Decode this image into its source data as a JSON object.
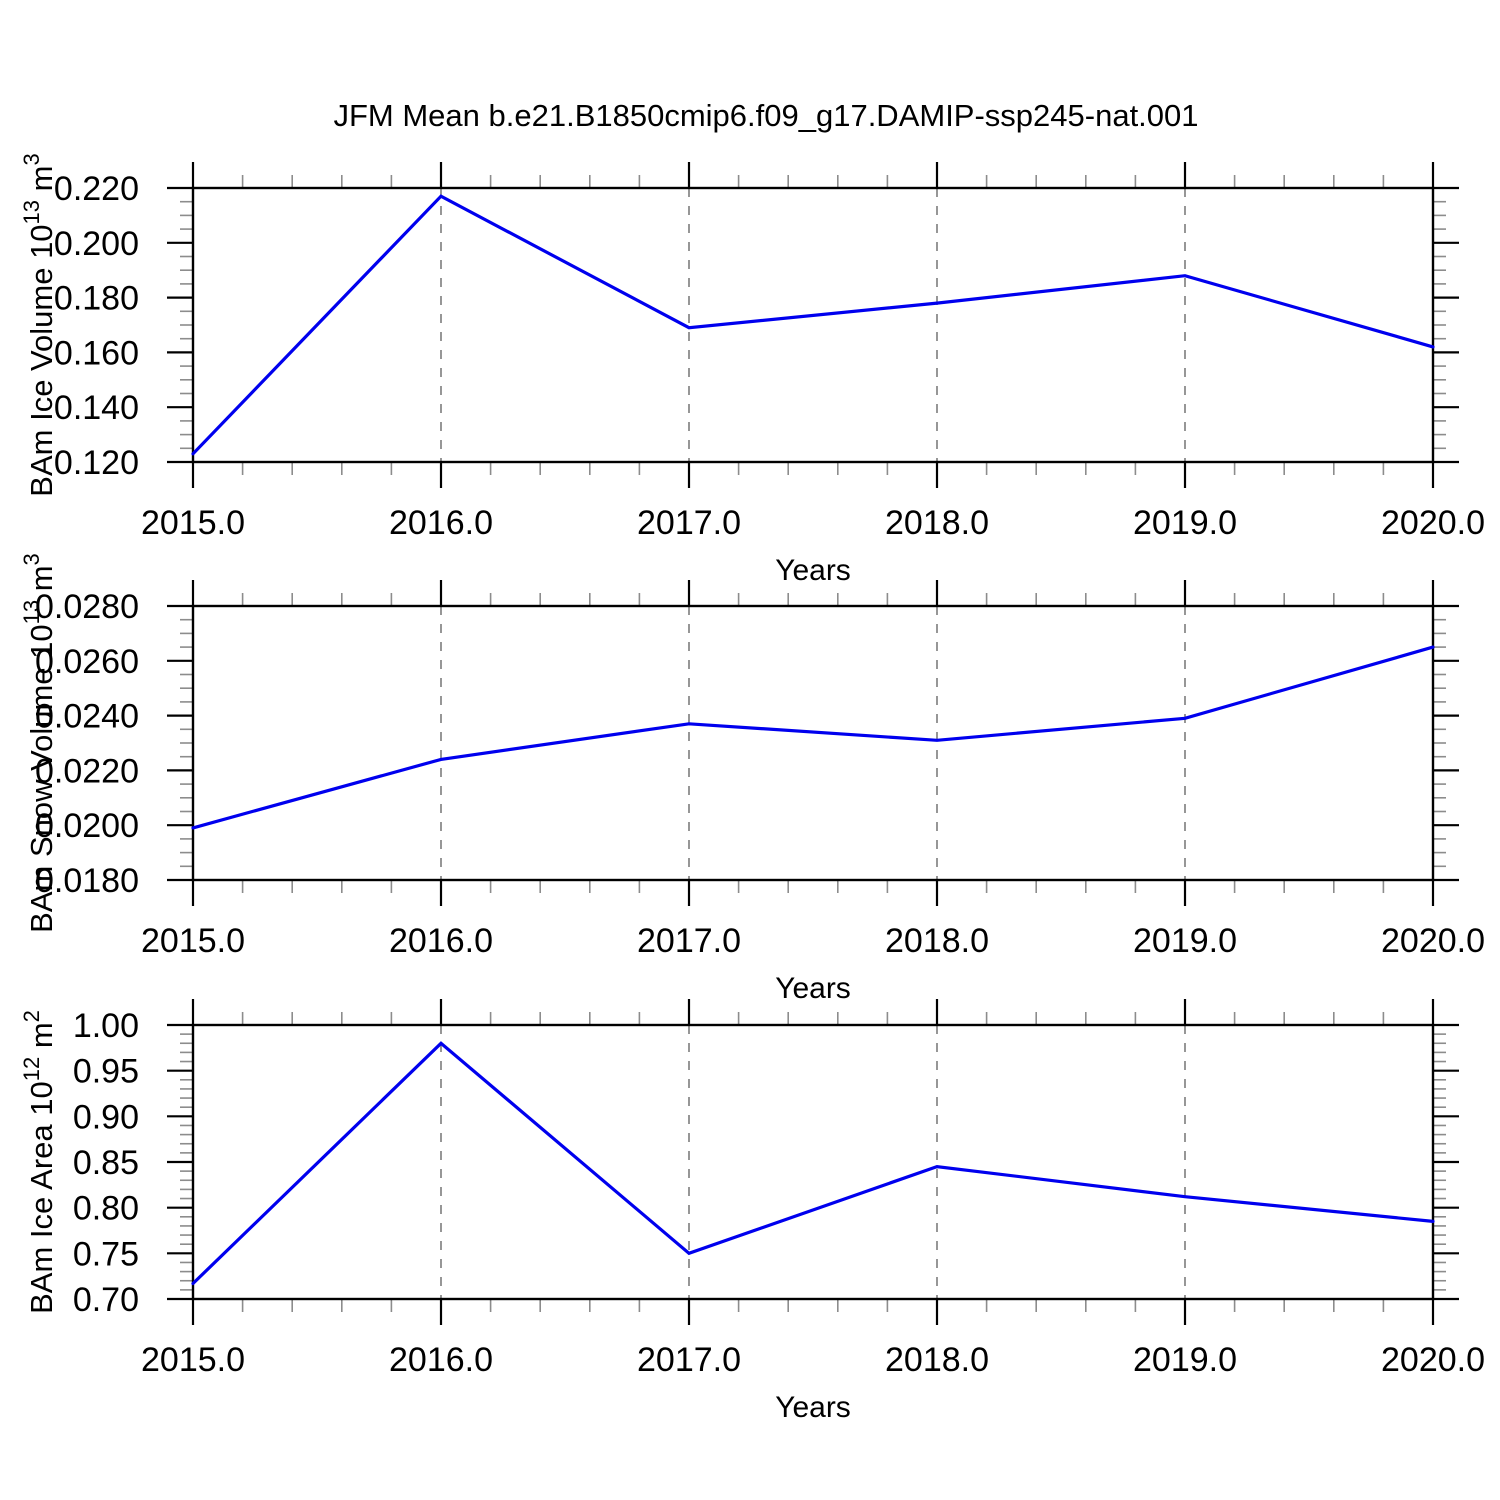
{
  "title": "JFM Mean b.e21.B1850cmip6.f09_g17.DAMIP-ssp245-nat.001",
  "colors": {
    "line": "#0000ee",
    "grid_dashed": "#7d7d7d",
    "axis": "#000000",
    "minor_tick": "#8c8c8c"
  },
  "chart_data": [
    {
      "type": "line",
      "ylabel": "BAm Ice Volume 10^13 m^3",
      "ylabel_parts": [
        {
          "t": "BAm Ice Volume 10"
        },
        {
          "t": "13",
          "sup": true
        },
        {
          "t": " m"
        },
        {
          "t": "3",
          "sup": true
        }
      ],
      "xlabel": "Years",
      "x": [
        2015,
        2016,
        2017,
        2018,
        2019,
        2020
      ],
      "values": [
        0.123,
        0.217,
        0.169,
        0.178,
        0.188,
        0.162
      ],
      "ylim": [
        0.12,
        0.22
      ],
      "yticks": [
        {
          "v": 0.22,
          "label": "0.220"
        },
        {
          "v": 0.2,
          "label": "0.200"
        },
        {
          "v": 0.18,
          "label": "0.180"
        },
        {
          "v": 0.16,
          "label": "0.160"
        },
        {
          "v": 0.14,
          "label": "0.140"
        },
        {
          "v": 0.12,
          "label": "0.120"
        }
      ],
      "y_minor_step": 0.005,
      "xlim": [
        2015,
        2020
      ],
      "xticks": [
        {
          "v": 2015,
          "label": "2015.0"
        },
        {
          "v": 2016,
          "label": "2016.0"
        },
        {
          "v": 2017,
          "label": "2017.0"
        },
        {
          "v": 2018,
          "label": "2018.0"
        },
        {
          "v": 2019,
          "label": "2019.0"
        },
        {
          "v": 2020,
          "label": "2020.0"
        }
      ],
      "x_minor_step": 0.2,
      "grid_x": [
        2016,
        2017,
        2018,
        2019
      ],
      "legend": "none",
      "grid": "vertical-dashed"
    },
    {
      "type": "line",
      "ylabel": "BAm Snow Volume 10^13 m^3",
      "ylabel_parts": [
        {
          "t": "BAm Snow Volume 10"
        },
        {
          "t": "13",
          "sup": true
        },
        {
          "t": " m"
        },
        {
          "t": "3",
          "sup": true
        }
      ],
      "xlabel": "Years",
      "x": [
        2015,
        2016,
        2017,
        2018,
        2019,
        2020
      ],
      "values": [
        0.0199,
        0.0224,
        0.0237,
        0.0231,
        0.0239,
        0.0265
      ],
      "ylim": [
        0.018,
        0.028
      ],
      "yticks": [
        {
          "v": 0.028,
          "label": "0.0280"
        },
        {
          "v": 0.026,
          "label": "0.0260"
        },
        {
          "v": 0.024,
          "label": "0.0240"
        },
        {
          "v": 0.022,
          "label": "0.0220"
        },
        {
          "v": 0.02,
          "label": "0.0200"
        },
        {
          "v": 0.018,
          "label": "0.0180"
        }
      ],
      "y_minor_step": 0.0005,
      "xlim": [
        2015,
        2020
      ],
      "xticks": [
        {
          "v": 2015,
          "label": "2015.0"
        },
        {
          "v": 2016,
          "label": "2016.0"
        },
        {
          "v": 2017,
          "label": "2017.0"
        },
        {
          "v": 2018,
          "label": "2018.0"
        },
        {
          "v": 2019,
          "label": "2019.0"
        },
        {
          "v": 2020,
          "label": "2020.0"
        }
      ],
      "x_minor_step": 0.2,
      "grid_x": [
        2016,
        2017,
        2018,
        2019
      ],
      "legend": "none",
      "grid": "vertical-dashed"
    },
    {
      "type": "line",
      "ylabel": "BAm Ice Area 10^12 m^2",
      "ylabel_parts": [
        {
          "t": "BAm Ice Area 10"
        },
        {
          "t": "12",
          "sup": true
        },
        {
          "t": " m"
        },
        {
          "t": "2",
          "sup": true
        }
      ],
      "xlabel": "Years",
      "x": [
        2015,
        2016,
        2017,
        2018,
        2019,
        2020
      ],
      "values": [
        0.717,
        0.98,
        0.75,
        0.845,
        0.812,
        0.785
      ],
      "ylim": [
        0.7,
        1.0
      ],
      "yticks": [
        {
          "v": 1.0,
          "label": "1.00"
        },
        {
          "v": 0.95,
          "label": "0.95"
        },
        {
          "v": 0.9,
          "label": "0.90"
        },
        {
          "v": 0.85,
          "label": "0.85"
        },
        {
          "v": 0.8,
          "label": "0.80"
        },
        {
          "v": 0.75,
          "label": "0.75"
        },
        {
          "v": 0.7,
          "label": "0.70"
        }
      ],
      "y_minor_step": 0.01,
      "xlim": [
        2015,
        2020
      ],
      "xticks": [
        {
          "v": 2015,
          "label": "2015.0"
        },
        {
          "v": 2016,
          "label": "2016.0"
        },
        {
          "v": 2017,
          "label": "2017.0"
        },
        {
          "v": 2018,
          "label": "2018.0"
        },
        {
          "v": 2019,
          "label": "2019.0"
        },
        {
          "v": 2020,
          "label": "2020.0"
        }
      ],
      "x_minor_step": 0.2,
      "grid_x": [
        2016,
        2017,
        2018,
        2019
      ],
      "legend": "none",
      "grid": "vertical-dashed"
    }
  ]
}
